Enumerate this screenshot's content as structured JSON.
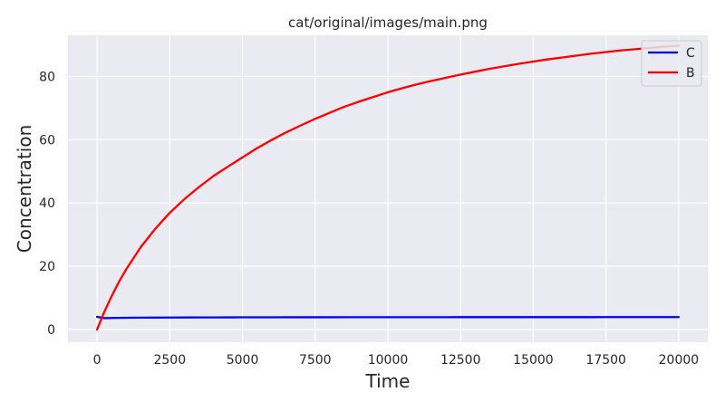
{
  "chart_data": {
    "type": "line",
    "title": "cat/original/images/main.png",
    "xlabel": "Time",
    "ylabel": "Concentration",
    "xlim": [
      -1000,
      21000
    ],
    "ylim": [
      -4,
      93
    ],
    "xticks": [
      0,
      2500,
      5000,
      7500,
      10000,
      12500,
      15000,
      17500,
      20000
    ],
    "yticks": [
      0,
      20,
      40,
      60,
      80
    ],
    "grid": true,
    "legend_position": "top-right",
    "background_color": "#eaeaf2",
    "grid_color": "#ffffff",
    "x": [
      0,
      250,
      500,
      750,
      1000,
      1500,
      2000,
      2500,
      3000,
      3500,
      4000,
      4500,
      5000,
      5500,
      6000,
      6500,
      7000,
      7500,
      8000,
      8500,
      9000,
      9500,
      10000,
      10500,
      11000,
      11500,
      12000,
      12500,
      13000,
      13500,
      14000,
      14500,
      15000,
      15500,
      16000,
      16500,
      17000,
      17500,
      18000,
      18500,
      19000,
      19500,
      20000
    ],
    "series": [
      {
        "name": "C",
        "color": "#0000ff",
        "values": [
          4.0,
          3.6,
          3.65,
          3.7,
          3.72,
          3.75,
          3.78,
          3.8,
          3.82,
          3.83,
          3.84,
          3.85,
          3.86,
          3.87,
          3.87,
          3.88,
          3.88,
          3.89,
          3.89,
          3.9,
          3.9,
          3.9,
          3.9,
          3.91,
          3.91,
          3.91,
          3.91,
          3.92,
          3.92,
          3.92,
          3.92,
          3.92,
          3.93,
          3.93,
          3.93,
          3.93,
          3.93,
          3.94,
          3.94,
          3.94,
          3.94,
          3.94,
          3.94
        ]
      },
      {
        "name": "B",
        "color": "#ff0000",
        "values": [
          0.0,
          5.6,
          10.5,
          15.0,
          19.0,
          26.0,
          31.8,
          36.9,
          41.2,
          45.0,
          48.5,
          51.5,
          54.4,
          57.3,
          59.9,
          62.3,
          64.5,
          66.6,
          68.5,
          70.4,
          72.0,
          73.5,
          75.0,
          76.3,
          77.5,
          78.6,
          79.6,
          80.6,
          81.5,
          82.4,
          83.2,
          84.0,
          84.7,
          85.4,
          86.0,
          86.6,
          87.2,
          87.7,
          88.2,
          88.6,
          89.0,
          89.4,
          89.7
        ]
      }
    ]
  }
}
